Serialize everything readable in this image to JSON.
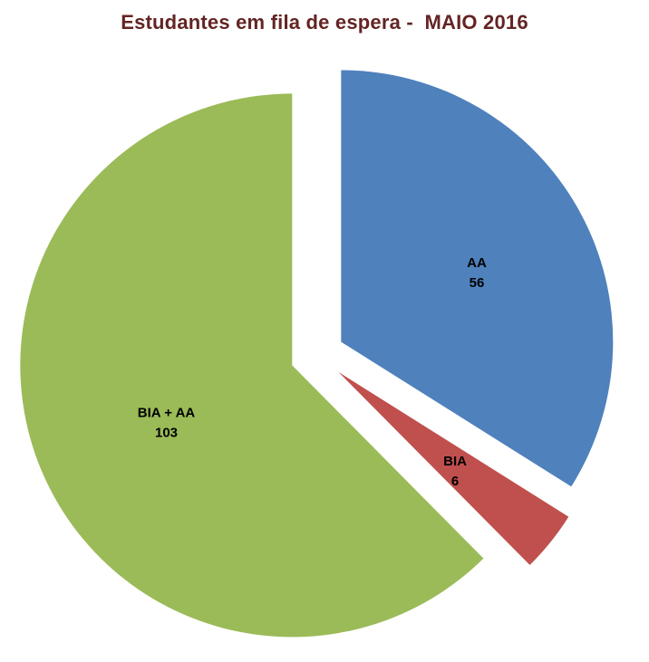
{
  "chart_data": {
    "type": "pie",
    "title": "Estudantes em fila de espera -  MAIO 2016",
    "title_color": "#632423",
    "label_color": "#000000",
    "background": "#FFFFFF",
    "start_angle_deg": 0,
    "direction": "clockwise",
    "exploded": true,
    "legend": "none",
    "slices": [
      {
        "label": "AA",
        "value": 56,
        "color": "#4F81BD"
      },
      {
        "label": "BIA",
        "value": 6,
        "color": "#C0504D"
      },
      {
        "label": "BIA + AA",
        "value": 103,
        "color": "#9BBB59"
      }
    ]
  }
}
